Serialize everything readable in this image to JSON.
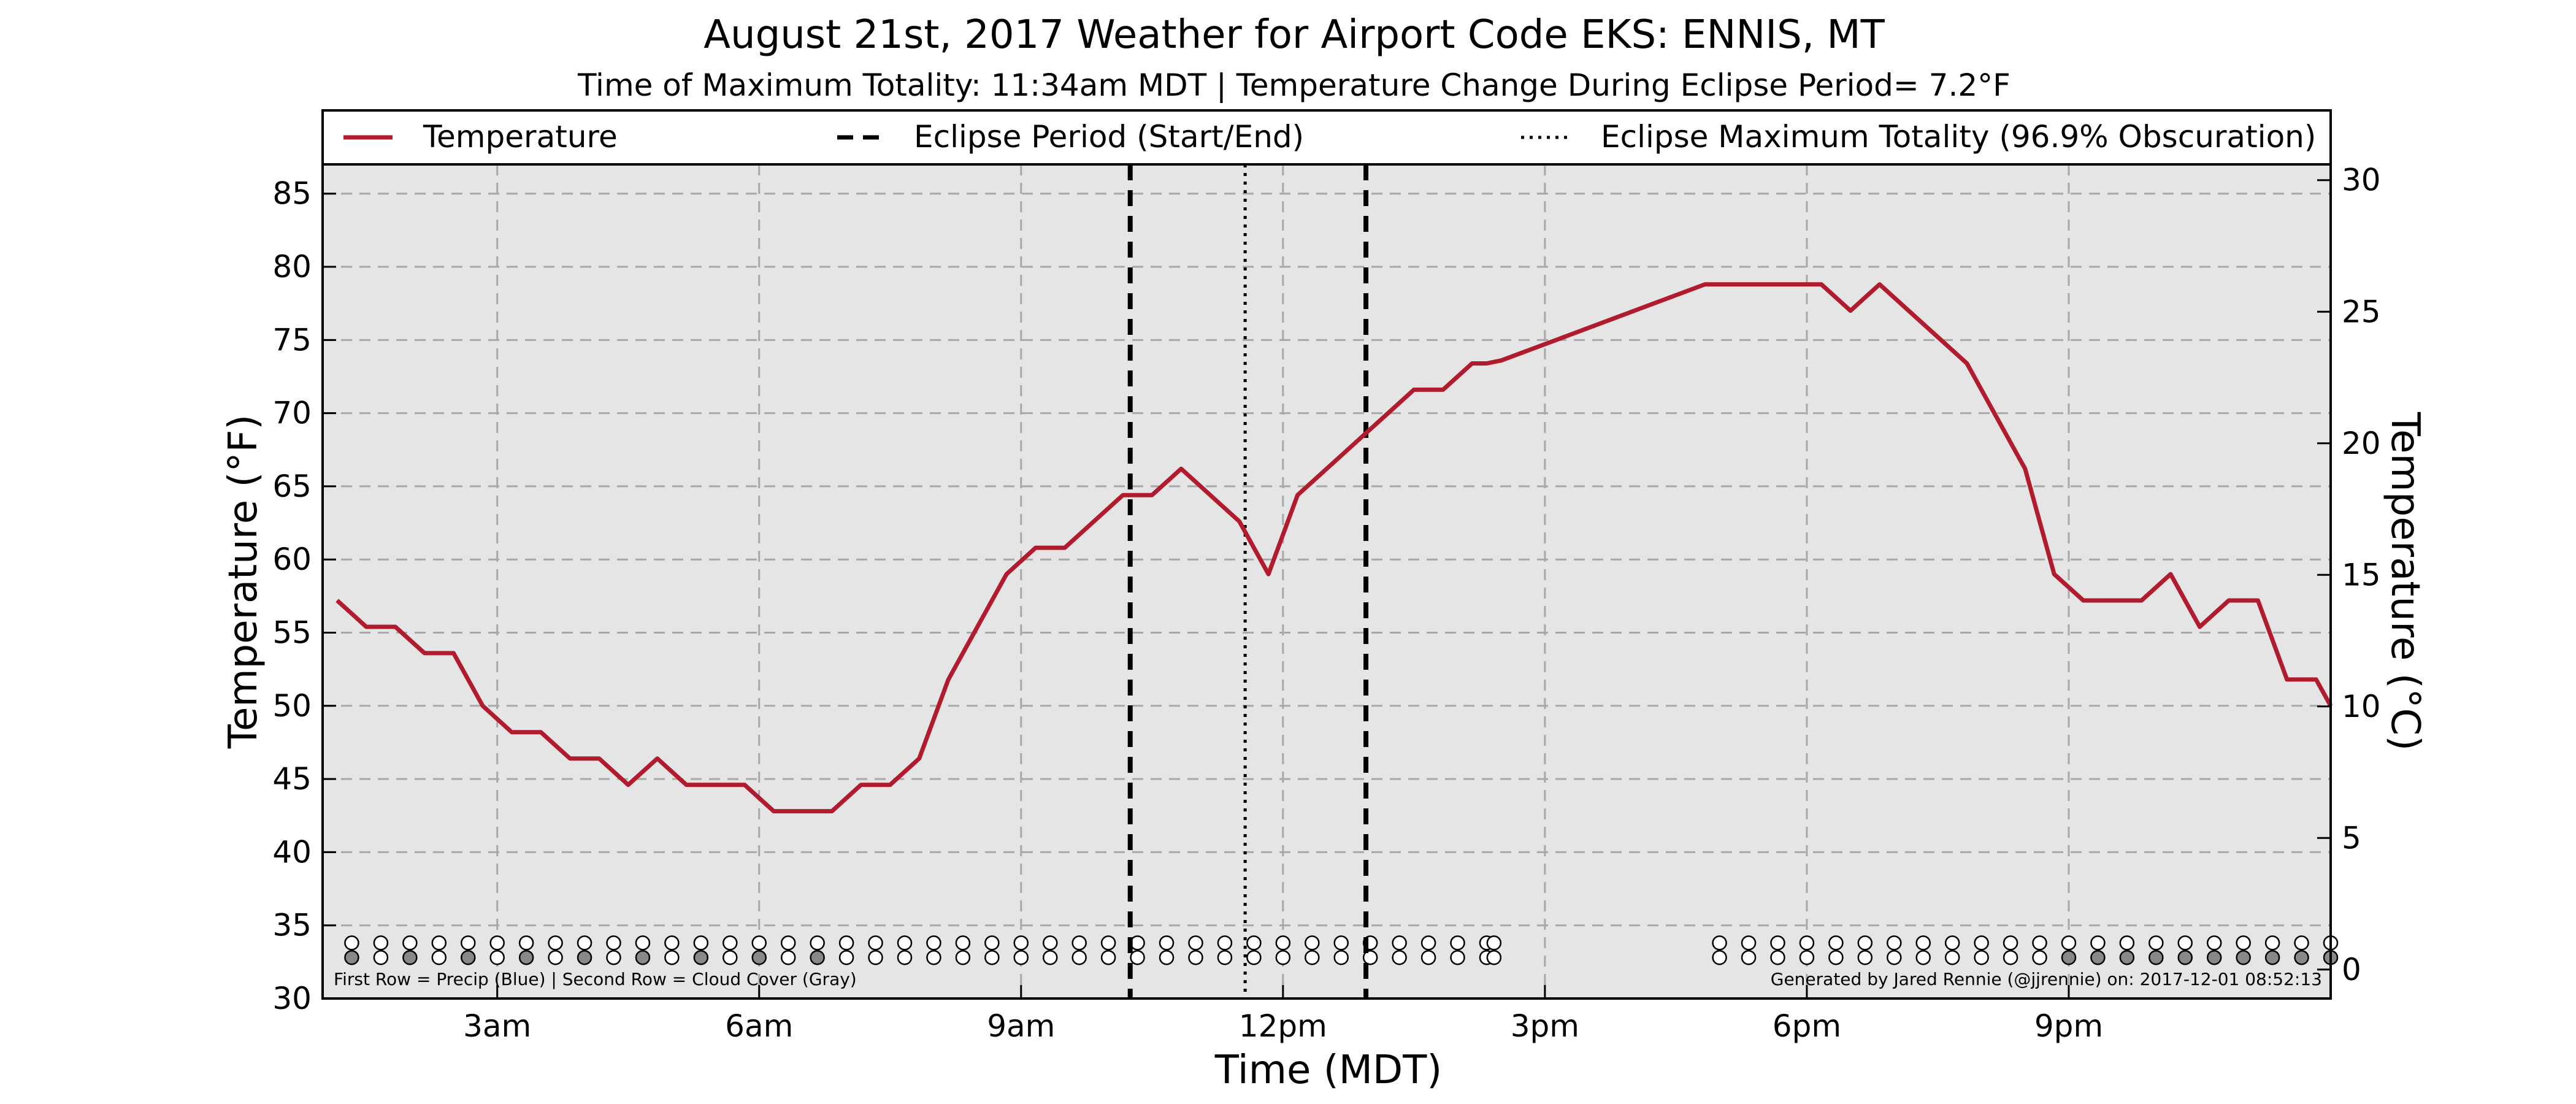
{
  "chart_data": {
    "type": "line",
    "title": "August 21st, 2017 Weather for Airport Code EKS: ENNIS, MT",
    "subtitle": "Time of Maximum Totality: 11:34am MDT | Temperature Change During Eclipse Period= 7.2°F",
    "xlabel": "Time (MDT)",
    "ylabel": "Temperature (°F)",
    "ylabel_right": "Temperature (°C)",
    "xlim_hours": [
      1,
      24
    ],
    "ylim": [
      30,
      87
    ],
    "ylim_right": [
      -1.1,
      30.6
    ],
    "x_ticks": [
      {
        "label": "3am",
        "hour": 3
      },
      {
        "label": "6am",
        "hour": 6
      },
      {
        "label": "9am",
        "hour": 9
      },
      {
        "label": "12pm",
        "hour": 12
      },
      {
        "label": "3pm",
        "hour": 15
      },
      {
        "label": "6pm",
        "hour": 18
      },
      {
        "label": "9pm",
        "hour": 21
      }
    ],
    "y_ticks": [
      30,
      35,
      40,
      45,
      50,
      55,
      60,
      65,
      70,
      75,
      80,
      85
    ],
    "y_ticks_right": [
      0,
      5,
      10,
      15,
      20,
      25,
      30
    ],
    "grid": true,
    "legend": {
      "position": "top",
      "entries": [
        {
          "label": "Temperature",
          "style": "solid",
          "color": "#b01c2e"
        },
        {
          "label": "Eclipse Period (Start/End)",
          "style": "dashed",
          "color": "#000000"
        },
        {
          "label": "Eclipse Maximum Totality (96.9% Obscuration)",
          "style": "dotted",
          "color": "#000000"
        }
      ]
    },
    "series": [
      {
        "name": "Temperature",
        "color": "#b01c2e",
        "x": [
          "01:10",
          "01:30",
          "01:50",
          "02:10",
          "02:30",
          "02:50",
          "03:10",
          "03:30",
          "03:50",
          "04:10",
          "04:30",
          "04:50",
          "05:10",
          "05:30",
          "05:50",
          "06:10",
          "06:30",
          "06:50",
          "07:10",
          "07:30",
          "07:50",
          "08:10",
          "08:30",
          "08:50",
          "09:10",
          "09:30",
          "09:50",
          "10:10",
          "10:30",
          "10:50",
          "11:10",
          "11:30",
          "11:50",
          "12:10",
          "12:30",
          "12:50",
          "13:10",
          "13:30",
          "13:50",
          "14:10",
          "14:20",
          "14:30",
          "16:50",
          "17:10",
          "17:30",
          "17:50",
          "18:10",
          "18:30",
          "18:50",
          "19:10",
          "19:30",
          "19:50",
          "20:10",
          "20:30",
          "20:50",
          "21:10",
          "21:30",
          "21:50",
          "22:10",
          "22:30",
          "22:50",
          "23:10",
          "23:30",
          "23:50",
          "24:00"
        ],
        "values": [
          57.2,
          55.4,
          55.4,
          53.6,
          53.6,
          50.0,
          48.2,
          48.2,
          46.4,
          46.4,
          44.6,
          46.4,
          44.6,
          44.6,
          44.6,
          42.8,
          42.8,
          42.8,
          44.6,
          44.6,
          46.4,
          51.8,
          55.4,
          59.0,
          60.8,
          60.8,
          62.6,
          64.4,
          64.4,
          66.2,
          64.4,
          62.6,
          59.0,
          64.4,
          66.2,
          68.0,
          69.8,
          71.6,
          71.6,
          73.4,
          73.4,
          73.6,
          78.8,
          78.8,
          78.8,
          78.8,
          78.8,
          77.0,
          78.8,
          77.0,
          75.2,
          73.4,
          69.8,
          66.2,
          59.0,
          57.2,
          57.2,
          57.2,
          59.0,
          55.4,
          57.2,
          57.2,
          51.8,
          51.8,
          50.0
        ]
      }
    ],
    "eclipse_start": "10:15",
    "eclipse_end": "12:57",
    "eclipse_max": "11:34",
    "obs_hours_a": [
      "01:20",
      "01:40",
      "02:00",
      "02:20",
      "02:40",
      "03:00",
      "03:20",
      "03:40",
      "04:00",
      "04:20",
      "04:40",
      "05:00",
      "05:20",
      "05:40",
      "06:00",
      "06:20",
      "06:40",
      "07:00",
      "07:20",
      "07:40",
      "08:00",
      "08:20",
      "08:40",
      "09:00",
      "09:20",
      "09:40",
      "10:00",
      "10:20",
      "10:40",
      "11:00",
      "11:20",
      "11:40",
      "12:00",
      "12:20",
      "12:40",
      "13:00",
      "13:20",
      "13:40",
      "14:00",
      "14:20",
      "14:25",
      "17:00",
      "17:20",
      "17:40",
      "18:00",
      "18:20",
      "18:40",
      "19:00",
      "19:20",
      "19:40",
      "20:00",
      "20:20",
      "20:40",
      "21:00",
      "21:20",
      "21:40",
      "22:00",
      "22:20",
      "22:40",
      "23:00",
      "23:20",
      "23:40",
      "24:00"
    ],
    "cloud_gray": [
      true,
      false,
      true,
      false,
      true,
      false,
      true,
      false,
      true,
      false,
      true,
      false,
      true,
      false,
      true,
      false,
      true,
      false,
      false,
      false,
      false,
      false,
      false,
      false,
      false,
      false,
      false,
      false,
      false,
      false,
      false,
      false,
      false,
      false,
      false,
      false,
      false,
      false,
      false,
      false,
      false,
      false,
      false,
      false,
      false,
      false,
      false,
      false,
      false,
      false,
      false,
      false,
      false,
      true,
      true,
      true,
      true,
      true,
      true,
      true,
      true,
      true,
      true
    ],
    "note_left": "First Row = Precip (Blue) | Second Row = Cloud Cover (Gray)",
    "note_right": "Generated by Jared Rennie (@jjrennie) on: 2017-12-01 08:52:13",
    "colors": {
      "plot_background": "#e5e5e5",
      "grid": "#a8a8a8",
      "cloud_fill": "#888888"
    }
  }
}
